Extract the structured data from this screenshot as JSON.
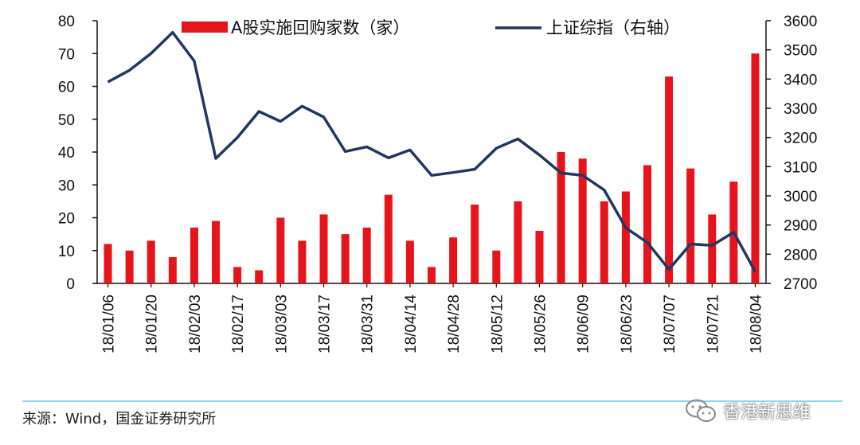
{
  "chart_data": {
    "type": "bar+line",
    "categories": [
      "18/01/06",
      "18/01/13",
      "18/01/20",
      "18/01/27",
      "18/02/03",
      "18/02/10",
      "18/02/17",
      "18/02/24",
      "18/03/03",
      "18/03/10",
      "18/03/17",
      "18/03/24",
      "18/03/31",
      "18/04/07",
      "18/04/14",
      "18/04/21",
      "18/04/28",
      "18/05/05",
      "18/05/12",
      "18/05/19",
      "18/05/26",
      "18/06/02",
      "18/06/09",
      "18/06/16",
      "18/06/23",
      "18/06/30",
      "18/07/07",
      "18/07/14",
      "18/07/21",
      "18/07/28",
      "18/08/04"
    ],
    "tick_labels": [
      "18/01/06",
      "18/01/20",
      "18/02/03",
      "18/02/17",
      "18/03/03",
      "18/03/17",
      "18/03/31",
      "18/04/14",
      "18/04/28",
      "18/05/12",
      "18/05/26",
      "18/06/09",
      "18/06/23",
      "18/07/07",
      "18/07/21",
      "18/08/04"
    ],
    "series": [
      {
        "name": "A股实施回购家数（家）",
        "type": "bar",
        "axis": "left",
        "color": "#e8141c",
        "values": [
          12,
          10,
          13,
          8,
          17,
          19,
          5,
          4,
          20,
          13,
          21,
          15,
          17,
          27,
          13,
          5,
          14,
          24,
          10,
          25,
          16,
          40,
          38,
          25,
          28,
          36,
          63,
          35,
          21,
          31,
          70
        ]
      },
      {
        "name": "上证综指（右轴）",
        "type": "line",
        "axis": "right",
        "color": "#1f3864",
        "values": [
          3390,
          3430,
          3488,
          3560,
          3462,
          3128,
          3200,
          3289,
          3255,
          3307,
          3270,
          3152,
          3168,
          3130,
          3157,
          3070,
          3080,
          3091,
          3163,
          3195,
          3140,
          3078,
          3070,
          3020,
          2890,
          2840,
          2748,
          2835,
          2830,
          2875,
          2740
        ]
      }
    ],
    "y_left": {
      "min": 0,
      "max": 80,
      "ticks": [
        0,
        10,
        20,
        30,
        40,
        50,
        60,
        70,
        80
      ]
    },
    "y_right": {
      "min": 2700,
      "max": 3600,
      "ticks": [
        2700,
        2800,
        2900,
        3000,
        3100,
        3200,
        3300,
        3400,
        3500,
        3600
      ]
    },
    "legend": [
      "A股实施回购家数（家）",
      "上证综指（右轴）"
    ],
    "legend_position": "top"
  },
  "source": "来源：Wind，国金证券研究所",
  "watermark": "香港新思维"
}
